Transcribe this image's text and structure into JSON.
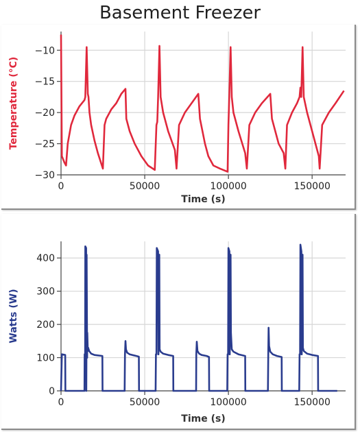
{
  "title": "Basement Freezer",
  "chart_data": [
    {
      "type": "line",
      "xlabel": "Time (s)",
      "ylabel": "Temperature (°C)",
      "xlim": [
        0,
        170000
      ],
      "ylim": [
        -30,
        -7
      ],
      "xticks": [
        0,
        50000,
        100000,
        150000
      ],
      "yticks": [
        -30,
        -25,
        -20,
        -15,
        -10
      ],
      "grid": true,
      "color": "#e0283c",
      "series": [
        {
          "x": [
            0,
            500,
            2000,
            3000,
            4000,
            6000,
            8000,
            11000,
            14000,
            14500,
            15300,
            16000,
            16400,
            17000,
            18000,
            20000,
            22000,
            25000,
            26000,
            27000,
            30000,
            33000,
            36000,
            38500,
            39000,
            41000,
            44000,
            48000,
            52000,
            56000,
            57000,
            57500,
            58000,
            58800,
            59500,
            61000,
            64000,
            68000,
            69000,
            70500,
            74000,
            78000,
            82000,
            83000,
            84500,
            86000,
            88000,
            91000,
            95000,
            99500,
            100000,
            100500,
            101300,
            102000,
            103000,
            106000,
            110000,
            111000,
            112500,
            116000,
            120000,
            125000,
            126000,
            128000,
            130000,
            133000,
            134000,
            135000,
            138000,
            141000,
            142500,
            143000,
            143500,
            144300,
            145000,
            147000,
            150000,
            154000,
            154500,
            156000,
            160000,
            164000,
            169000
          ],
          "y": [
            -7.5,
            -27,
            -28,
            -28.5,
            -25,
            -22,
            -20.5,
            -19,
            -18,
            -17.5,
            -9.5,
            -17,
            -17.5,
            -20,
            -22,
            -24.5,
            -26.5,
            -29,
            -22,
            -21,
            -19.5,
            -18.5,
            -17,
            -16.2,
            -21,
            -23,
            -25,
            -27,
            -28.5,
            -29.2,
            -22,
            -21.5,
            -17.5,
            -9.3,
            -17.5,
            -20,
            -23,
            -26,
            -29,
            -22,
            -20,
            -18.5,
            -17,
            -21,
            -23,
            -25,
            -27,
            -28.5,
            -29,
            -29.5,
            -22,
            -17.5,
            -9.5,
            -17.5,
            -20,
            -23,
            -26.5,
            -29,
            -22,
            -20,
            -18.5,
            -17,
            -21,
            -23,
            -25,
            -26.5,
            -29,
            -22,
            -20,
            -18.5,
            -17.5,
            -16,
            -17.5,
            -9.5,
            -17.5,
            -20,
            -23,
            -27,
            -29,
            -22,
            -20,
            -18.5,
            -16.5
          ]
        }
      ]
    },
    {
      "type": "line",
      "xlabel": "Time (s)",
      "ylabel": "Watts (W)",
      "xlim": [
        0,
        170000
      ],
      "ylim": [
        0,
        450
      ],
      "xticks": [
        0,
        50000,
        100000,
        150000
      ],
      "yticks": [
        0,
        100,
        200,
        300,
        400
      ],
      "grid": true,
      "color": "#2a3c8e",
      "series": [
        {
          "x": [
            0,
            500,
            2500,
            2600,
            14000,
            14100,
            14400,
            14500,
            15000,
            15100,
            15200,
            15300,
            15600,
            15700,
            16000,
            16200,
            16800,
            18000,
            20000,
            24700,
            24800,
            38000,
            38200,
            38500,
            38800,
            39500,
            41000,
            42500,
            45000,
            46500,
            46600,
            56500,
            56700,
            57000,
            57200,
            58000,
            58200,
            58700,
            58900,
            59500,
            61000,
            64000,
            67000,
            67100,
            80700,
            80800,
            81100,
            81500,
            82500,
            84000,
            87000,
            88400,
            88500,
            99300,
            99500,
            99800,
            100000,
            100600,
            100800,
            101300,
            101500,
            102000,
            103000,
            106000,
            110000,
            110100,
            123600,
            123800,
            124000,
            124300,
            125000,
            126500,
            129000,
            131800,
            131900,
            142300,
            142500,
            142800,
            143000,
            143600,
            143800,
            144300,
            144500,
            145000,
            147000,
            150000,
            153500,
            153600,
            165000
          ],
          "y": [
            0,
            110,
            108,
            0,
            0,
            110,
            110,
            435,
            430,
            0,
            120,
            410,
            100,
            175,
            120,
            130,
            120,
            112,
            108,
            105,
            0,
            0,
            110,
            150,
            125,
            115,
            110,
            108,
            105,
            103,
            0,
            0,
            110,
            110,
            430,
            420,
            110,
            410,
            125,
            118,
            112,
            108,
            105,
            0,
            0,
            110,
            148,
            120,
            112,
            108,
            105,
            102,
            0,
            0,
            110,
            110,
            430,
            420,
            110,
            410,
            175,
            125,
            118,
            110,
            105,
            0,
            0,
            110,
            190,
            135,
            118,
            110,
            105,
            102,
            0,
            0,
            110,
            110,
            440,
            420,
            110,
            410,
            130,
            120,
            112,
            108,
            105,
            0,
            0
          ]
        }
      ]
    }
  ]
}
